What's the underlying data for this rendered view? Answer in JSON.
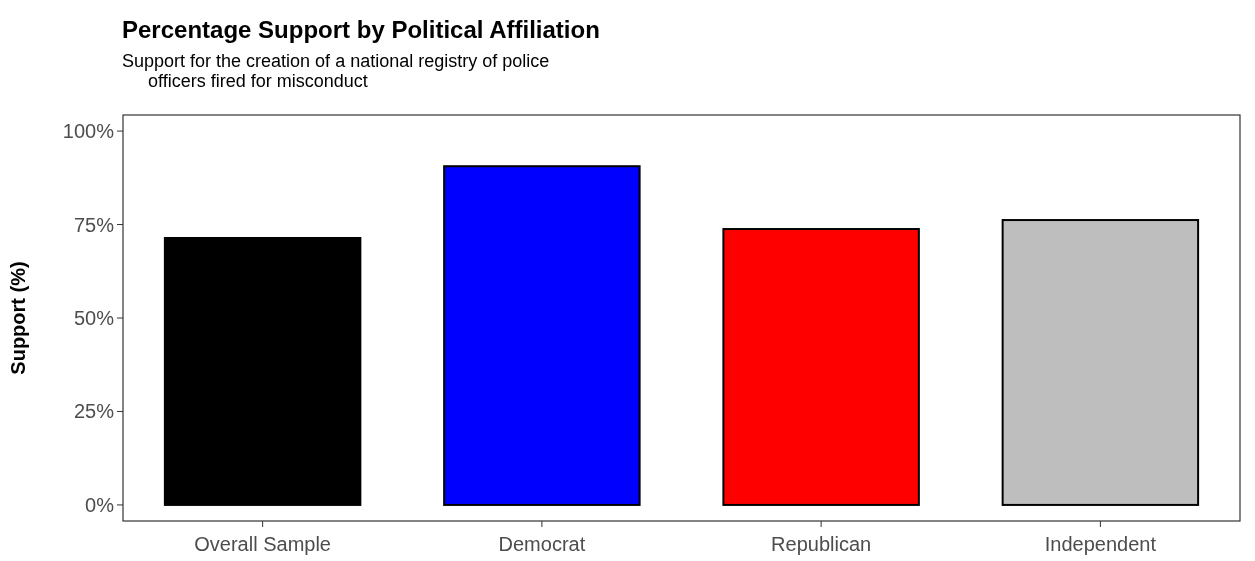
{
  "chart_data": {
    "type": "bar",
    "title": "Percentage Support by Political Affiliation",
    "subtitle": "Support for the creation of a national registry of police\nofficers fired for misconduct",
    "ylabel": "Support (%)",
    "categories": [
      "Overall Sample",
      "Democrat",
      "Republican",
      "Independent"
    ],
    "values": [
      71.4,
      90.6,
      73.8,
      76.2
    ],
    "colors": [
      "#000000",
      "#0000ff",
      "#ff0000",
      "#bebebe"
    ],
    "ylim": [
      -4.3,
      104.3
    ],
    "yticks": [
      {
        "value": 0,
        "label": "0%"
      },
      {
        "value": 25,
        "label": "25%"
      },
      {
        "value": 50,
        "label": "50%"
      },
      {
        "value": 75,
        "label": "75%"
      },
      {
        "value": 100,
        "label": "100%"
      }
    ],
    "grid": false
  }
}
